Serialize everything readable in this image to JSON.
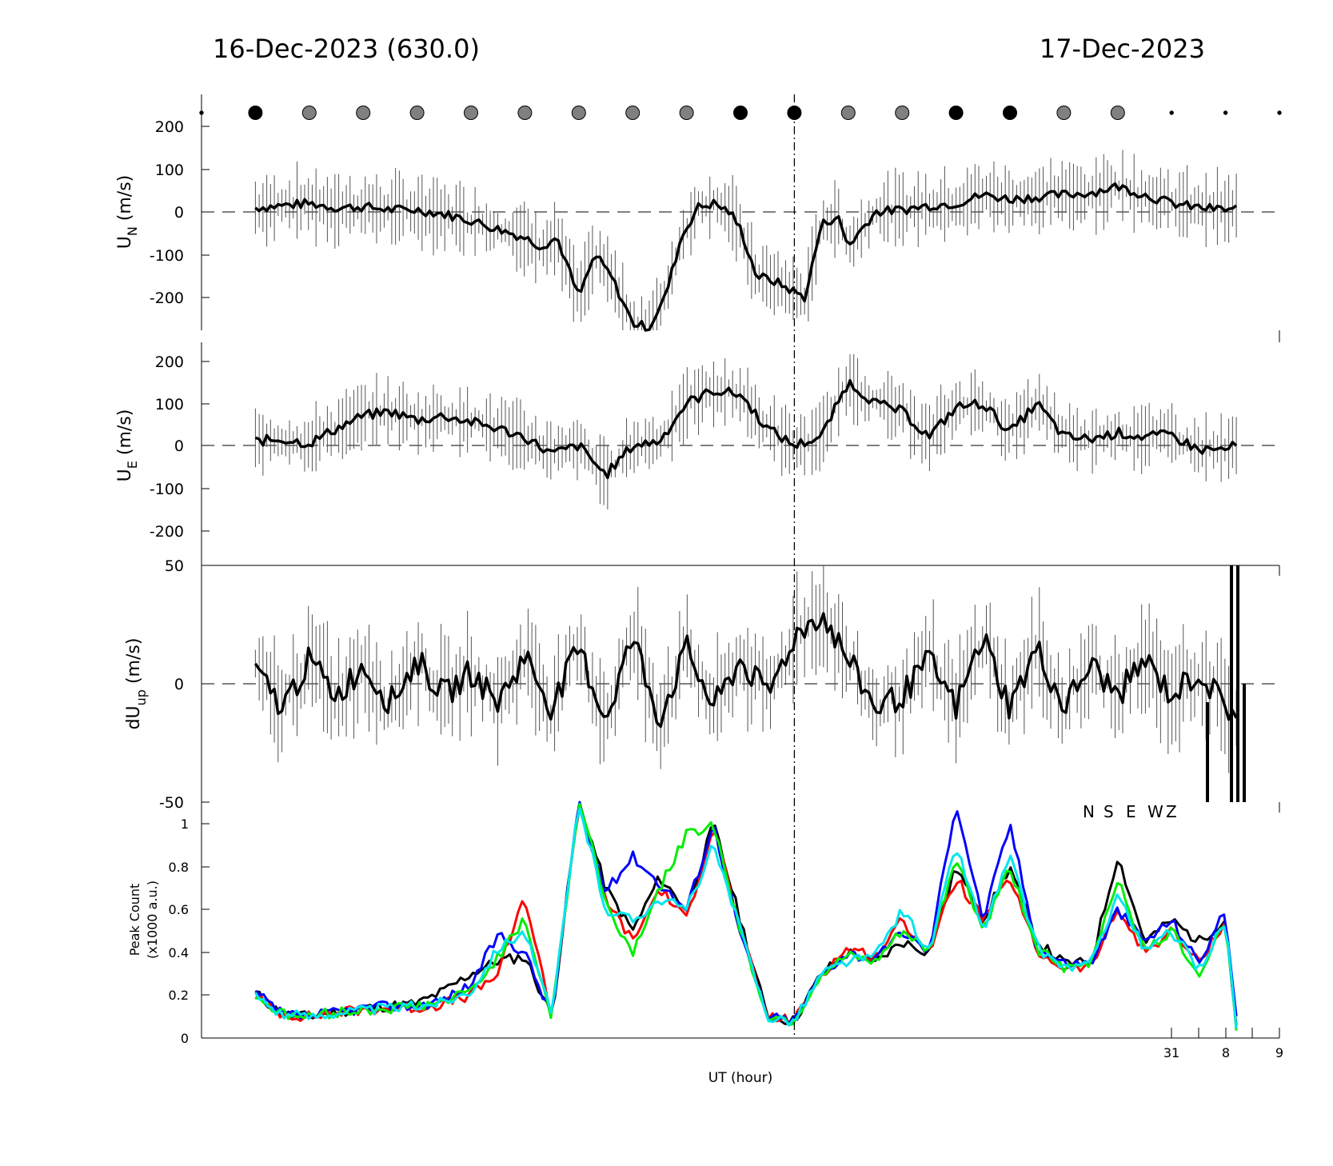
{
  "header": {
    "left_title": "16-Dec-2023 (630.0)",
    "right_title": "17-Dec-2023"
  },
  "xaxis": {
    "label": "UT (hour)",
    "tick_labels": [
      "31",
      "8",
      "9"
    ]
  },
  "legend": {
    "entries": [
      {
        "label": "N",
        "color": "#000000"
      },
      {
        "label": "S",
        "color": "#ff0000"
      },
      {
        "label": "E",
        "color": "#0000ff"
      },
      {
        "label": "W",
        "color": "#00ee00"
      },
      {
        "label": "Z",
        "color": "#00e5ee"
      }
    ]
  },
  "chart_data": [
    {
      "type": "line",
      "panel": "UN",
      "ylabel": "U",
      "ylabel_sub": "N",
      "ylabel_unit": "(m/s)",
      "yticks": [
        "200",
        "100",
        "0",
        "-100",
        "-200"
      ],
      "ylim": [
        -275,
        275
      ],
      "xlim": [
        0,
        20
      ],
      "x": [
        1.0,
        1.5,
        2.0,
        2.5,
        3.0,
        3.5,
        4.0,
        4.5,
        5.0,
        5.5,
        6.0,
        6.3,
        6.6,
        7.0,
        7.3,
        7.6,
        8.0,
        8.3,
        8.6,
        8.9,
        9.2,
        9.5,
        9.8,
        10.0,
        10.3,
        10.6,
        10.9,
        11.2,
        11.5,
        11.8,
        12.0,
        12.5,
        13.0,
        13.5,
        14.0,
        14.5,
        15.0,
        15.5,
        16.0,
        16.5,
        17.0,
        17.5,
        18.0,
        18.5,
        19.0,
        19.2
      ],
      "values": [
        10,
        15,
        20,
        10,
        12,
        5,
        5,
        -5,
        -20,
        -40,
        -60,
        -80,
        -60,
        -200,
        -100,
        -150,
        -260,
        -270,
        -200,
        -60,
        10,
        20,
        0,
        -40,
        -150,
        -160,
        -180,
        -200,
        -30,
        -10,
        -80,
        0,
        5,
        15,
        20,
        40,
        30,
        35,
        40,
        45,
        60,
        40,
        20,
        10,
        5,
        8
      ],
      "series_note": "error bars shown as thin vertical lines"
    },
    {
      "type": "line",
      "panel": "UE",
      "ylabel": "U",
      "ylabel_sub": "E",
      "ylabel_unit": "(m/s)",
      "yticks": [
        "200",
        "100",
        "0",
        "-100",
        "-200"
      ],
      "ylim": [
        -225,
        225
      ],
      "xlim": [
        0,
        20
      ],
      "x": [
        1.0,
        1.5,
        2.0,
        2.5,
        3.0,
        3.5,
        4.0,
        4.5,
        5.0,
        5.5,
        6.0,
        6.5,
        7.0,
        7.5,
        8.0,
        8.5,
        9.0,
        9.5,
        10.0,
        10.5,
        11.0,
        11.5,
        12.0,
        12.5,
        13.0,
        13.5,
        14.0,
        14.5,
        15.0,
        15.5,
        16.0,
        16.5,
        17.0,
        17.5,
        18.0,
        18.5,
        19.0,
        19.2
      ],
      "values": [
        10,
        15,
        5,
        40,
        70,
        80,
        60,
        70,
        55,
        40,
        20,
        -20,
        0,
        -70,
        0,
        10,
        100,
        130,
        120,
        40,
        0,
        20,
        150,
        100,
        80,
        20,
        90,
        100,
        30,
        100,
        20,
        15,
        30,
        20,
        25,
        -10,
        -10,
        0
      ]
    },
    {
      "type": "line",
      "panel": "dUup",
      "ylabel": "dU",
      "ylabel_sub": "up",
      "ylabel_unit": "(m/s)",
      "yticks": [
        "50",
        "0",
        "-50"
      ],
      "ylim": [
        -50,
        50
      ],
      "xlim": [
        0,
        20
      ],
      "x": [
        1.0,
        1.5,
        2.0,
        2.5,
        3.0,
        3.5,
        4.0,
        4.5,
        5.0,
        5.5,
        6.0,
        6.5,
        7.0,
        7.5,
        8.0,
        8.5,
        9.0,
        9.5,
        10.0,
        10.5,
        11.0,
        11.5,
        12.0,
        12.5,
        13.0,
        13.5,
        14.0,
        14.5,
        15.0,
        15.5,
        16.0,
        16.5,
        17.0,
        17.5,
        18.0,
        18.5,
        19.0,
        19.2
      ],
      "values": [
        5,
        -10,
        10,
        -5,
        8,
        -8,
        10,
        -5,
        5,
        -8,
        12,
        -10,
        15,
        -15,
        20,
        -15,
        15,
        -10,
        10,
        -5,
        20,
        30,
        10,
        -10,
        -5,
        10,
        -10,
        20,
        -10,
        15,
        -10,
        8,
        -5,
        10,
        -5,
        5,
        -10,
        -12
      ]
    },
    {
      "type": "line",
      "panel": "peak-count",
      "ylabel": "Peak Count",
      "ylabel_line2": "(x1000 a.u.)",
      "yticks": [
        "1",
        "0.8",
        "0.6",
        "0.4",
        "0.2",
        "0"
      ],
      "ylim": [
        0,
        1.1
      ],
      "xlim": [
        0,
        20
      ],
      "x": [
        1.0,
        1.5,
        2.0,
        2.5,
        3.0,
        3.5,
        4.0,
        4.5,
        5.0,
        5.5,
        6.0,
        6.5,
        7.0,
        7.2,
        7.5,
        8.0,
        8.5,
        9.0,
        9.5,
        10.0,
        10.5,
        11.0,
        11.5,
        12.0,
        12.5,
        13.0,
        13.5,
        14.0,
        14.5,
        15.0,
        15.5,
        16.0,
        16.5,
        17.0,
        17.5,
        18.0,
        18.5,
        19.0,
        19.2
      ],
      "series": [
        {
          "name": "N",
          "values": [
            0.21,
            0.11,
            0.1,
            0.12,
            0.14,
            0.15,
            0.16,
            0.22,
            0.3,
            0.36,
            0.38,
            0.1,
            1.1,
            0.95,
            0.7,
            0.5,
            0.75,
            0.6,
            1.0,
            0.55,
            0.1,
            0.08,
            0.3,
            0.4,
            0.35,
            0.45,
            0.4,
            0.8,
            0.55,
            0.8,
            0.45,
            0.35,
            0.35,
            0.85,
            0.45,
            0.55,
            0.45,
            0.55,
            0.06
          ]
        },
        {
          "name": "S",
          "values": [
            0.2,
            0.11,
            0.1,
            0.12,
            0.13,
            0.14,
            0.14,
            0.16,
            0.2,
            0.3,
            0.66,
            0.1,
            1.1,
            0.9,
            0.65,
            0.45,
            0.7,
            0.55,
            1.0,
            0.5,
            0.1,
            0.08,
            0.3,
            0.42,
            0.38,
            0.55,
            0.4,
            0.75,
            0.55,
            0.75,
            0.4,
            0.33,
            0.33,
            0.6,
            0.4,
            0.5,
            0.35,
            0.55,
            0.09
          ]
        },
        {
          "name": "E",
          "values": [
            0.21,
            0.11,
            0.1,
            0.12,
            0.14,
            0.15,
            0.15,
            0.18,
            0.25,
            0.48,
            0.4,
            0.1,
            1.1,
            0.92,
            0.68,
            0.85,
            0.72,
            0.6,
            1.0,
            0.48,
            0.1,
            0.08,
            0.3,
            0.4,
            0.36,
            0.5,
            0.4,
            1.1,
            0.55,
            1.0,
            0.42,
            0.35,
            0.35,
            0.6,
            0.45,
            0.55,
            0.35,
            0.6,
            0.08
          ]
        },
        {
          "name": "W",
          "values": [
            0.2,
            0.11,
            0.1,
            0.12,
            0.13,
            0.14,
            0.15,
            0.17,
            0.22,
            0.38,
            0.55,
            0.1,
            1.1,
            0.95,
            0.62,
            0.4,
            0.7,
            0.95,
            1.0,
            0.5,
            0.1,
            0.08,
            0.3,
            0.38,
            0.35,
            0.5,
            0.4,
            0.85,
            0.5,
            0.8,
            0.42,
            0.32,
            0.35,
            0.75,
            0.4,
            0.5,
            0.3,
            0.55,
            0.05
          ]
        },
        {
          "name": "Z",
          "values": [
            0.2,
            0.11,
            0.1,
            0.12,
            0.13,
            0.14,
            0.15,
            0.17,
            0.22,
            0.42,
            0.5,
            0.1,
            1.1,
            0.9,
            0.6,
            0.55,
            0.65,
            0.6,
            0.9,
            0.5,
            0.1,
            0.08,
            0.3,
            0.36,
            0.38,
            0.6,
            0.4,
            0.9,
            0.5,
            0.85,
            0.42,
            0.33,
            0.34,
            0.68,
            0.4,
            0.5,
            0.32,
            0.55,
            0.05
          ]
        }
      ]
    }
  ],
  "sky_condition_markers": [
    {
      "x": 0.0,
      "size": "small",
      "fill": "#000000"
    },
    {
      "x": 1.0,
      "size": "large",
      "fill": "#000000"
    },
    {
      "x": 2.0,
      "size": "large",
      "fill": "#808080"
    },
    {
      "x": 3.0,
      "size": "large",
      "fill": "#808080"
    },
    {
      "x": 4.0,
      "size": "large",
      "fill": "#808080"
    },
    {
      "x": 5.0,
      "size": "large",
      "fill": "#808080"
    },
    {
      "x": 6.0,
      "size": "large",
      "fill": "#808080"
    },
    {
      "x": 7.0,
      "size": "large",
      "fill": "#808080"
    },
    {
      "x": 8.0,
      "size": "large",
      "fill": "#808080"
    },
    {
      "x": 9.0,
      "size": "large",
      "fill": "#808080"
    },
    {
      "x": 10.0,
      "size": "large",
      "fill": "#000000"
    },
    {
      "x": 11.0,
      "size": "large",
      "fill": "#000000"
    },
    {
      "x": 12.0,
      "size": "large",
      "fill": "#808080"
    },
    {
      "x": 13.0,
      "size": "large",
      "fill": "#808080"
    },
    {
      "x": 14.0,
      "size": "large",
      "fill": "#000000"
    },
    {
      "x": 15.0,
      "size": "large",
      "fill": "#000000"
    },
    {
      "x": 16.0,
      "size": "large",
      "fill": "#808080"
    },
    {
      "x": 17.0,
      "size": "large",
      "fill": "#808080"
    },
    {
      "x": 18.0,
      "size": "small",
      "fill": "#000000"
    },
    {
      "x": 19.0,
      "size": "small",
      "fill": "#000000"
    },
    {
      "x": 20.0,
      "size": "small",
      "fill": "#000000"
    }
  ],
  "midnight_marker_x": 11.0,
  "colors": {
    "axis": "#000000",
    "trace": "#000000",
    "errorbar": "#555555"
  }
}
